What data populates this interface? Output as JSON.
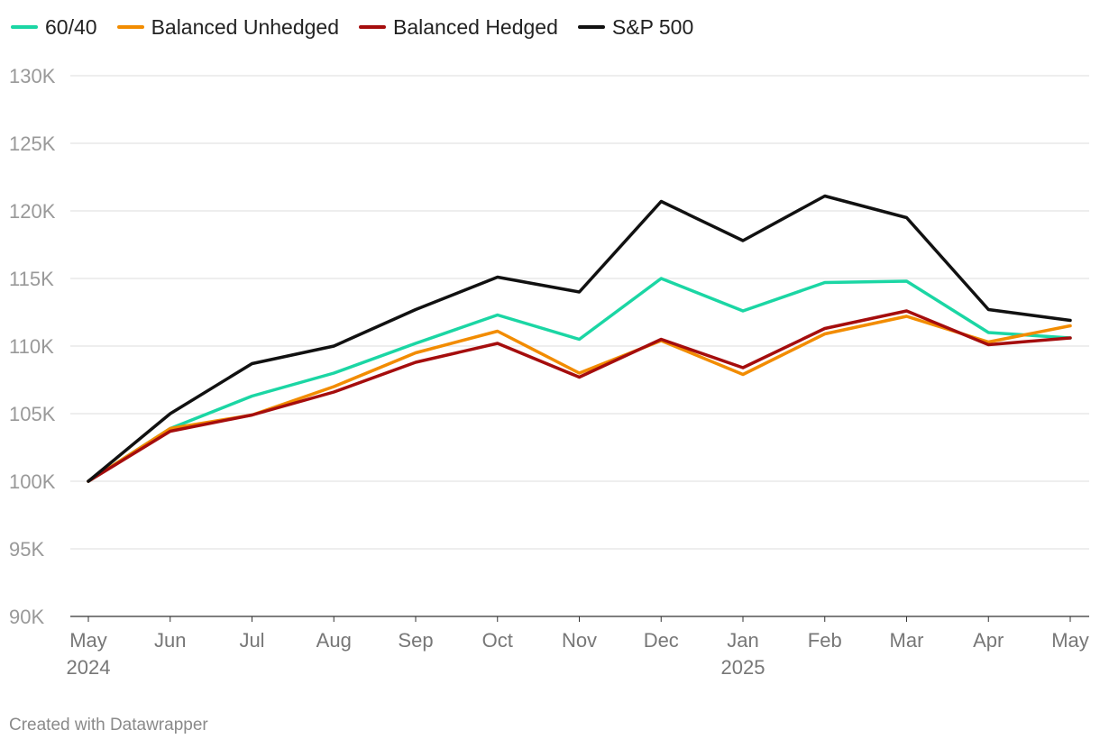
{
  "chart_data": {
    "type": "line",
    "title": "",
    "xlabel": "",
    "ylabel": "",
    "ylim": [
      90000,
      130000
    ],
    "yticks": [
      90000,
      95000,
      100000,
      105000,
      110000,
      115000,
      120000,
      125000,
      130000
    ],
    "ytick_labels": [
      "90K",
      "95K",
      "100K",
      "105K",
      "110K",
      "115K",
      "120K",
      "125K",
      "130K"
    ],
    "categories": [
      "May",
      "Jun",
      "Jul",
      "Aug",
      "Sep",
      "Oct",
      "Nov",
      "Dec",
      "Jan",
      "Feb",
      "Mar",
      "Apr",
      "May"
    ],
    "year_labels": [
      {
        "index": 0,
        "text": "2024"
      },
      {
        "index": 8,
        "text": "2025"
      }
    ],
    "grid": true,
    "legend_position": "top-left",
    "series": [
      {
        "name": "60/40",
        "color": "#1bd6a4",
        "values": [
          100000,
          103900,
          106300,
          108000,
          110200,
          112300,
          110500,
          115000,
          112600,
          114700,
          114800,
          111000,
          110600
        ]
      },
      {
        "name": "Balanced Unhedged",
        "color": "#f28c00",
        "values": [
          100000,
          103900,
          104900,
          107000,
          109500,
          111100,
          108000,
          110400,
          107900,
          110900,
          112200,
          110300,
          111500
        ]
      },
      {
        "name": "Balanced Hedged",
        "color": "#a50d0d",
        "values": [
          100000,
          103700,
          104900,
          106600,
          108800,
          110200,
          107700,
          110500,
          108400,
          111300,
          112600,
          110100,
          110600
        ]
      },
      {
        "name": "S&P 500",
        "color": "#111111",
        "values": [
          100000,
          105000,
          108700,
          110000,
          112700,
          115100,
          114000,
          120700,
          117800,
          121100,
          119500,
          112700,
          111900
        ]
      }
    ]
  },
  "footer": {
    "credit": "Created with Datawrapper"
  }
}
